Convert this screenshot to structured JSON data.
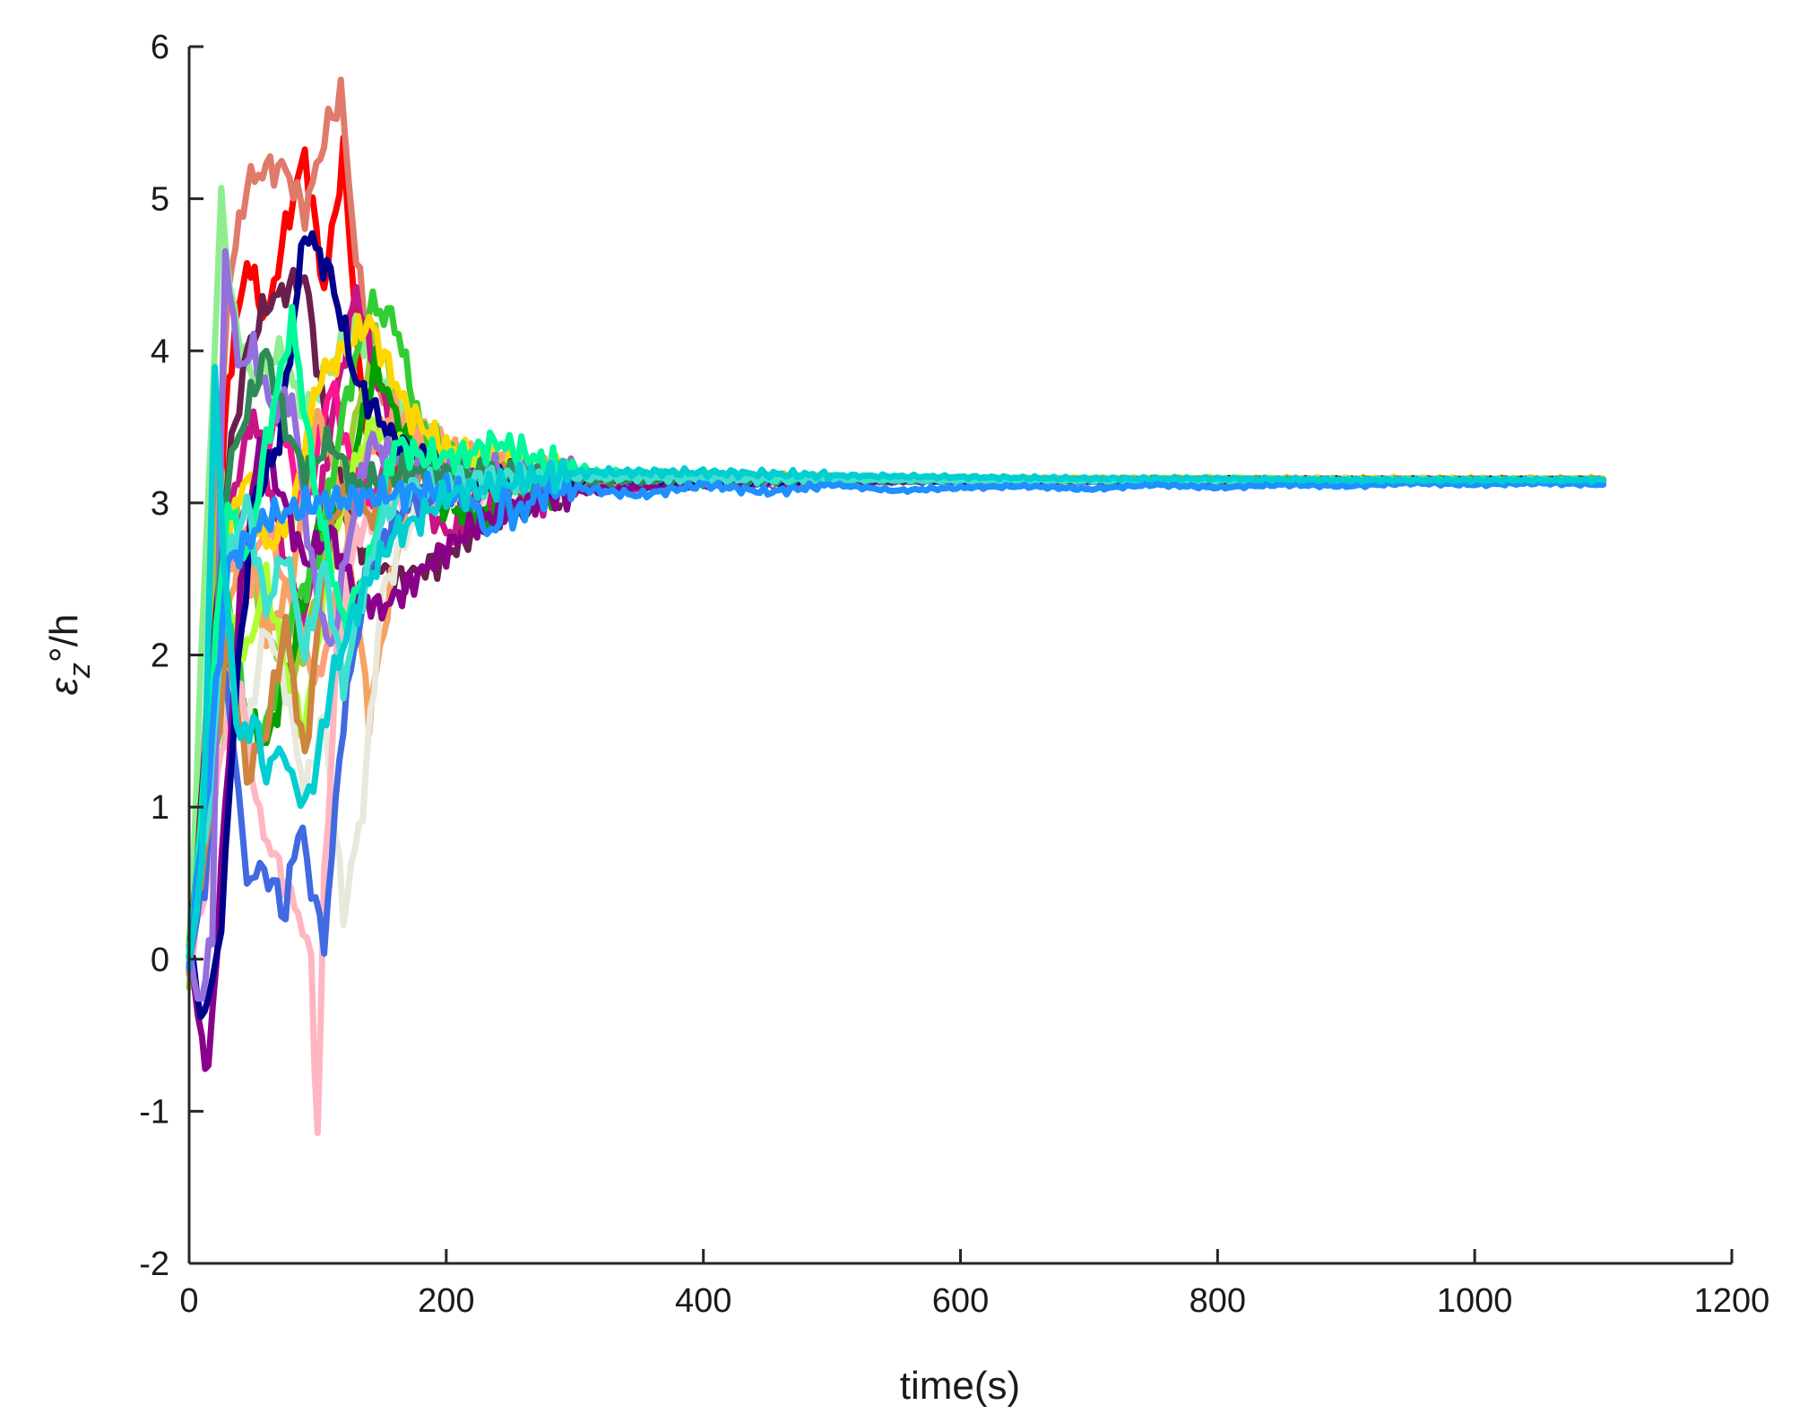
{
  "chart_data": {
    "type": "line",
    "title": "",
    "xlabel": "time(s)",
    "ylabel_parts": {
      "symbol": "ε",
      "subscript": "z",
      "unit": "°/h"
    },
    "xlim": [
      0,
      1200
    ],
    "ylim": [
      -2,
      6
    ],
    "xticks": [
      0,
      200,
      400,
      600,
      800,
      1000,
      1200
    ],
    "yticks": [
      -2,
      -1,
      0,
      1,
      2,
      3,
      4,
      5,
      6
    ],
    "xtick_labels": [
      "0",
      "200",
      "400",
      "600",
      "800",
      "1000",
      "1200"
    ],
    "ytick_labels": [
      "-2",
      "-1",
      "0",
      "1",
      "2",
      "3",
      "4",
      "5",
      "6"
    ],
    "grid": false,
    "legend": "none",
    "series": [
      {
        "color": "#ff0000",
        "x": [
          0,
          15,
          30,
          45,
          60,
          75,
          90,
          105,
          120,
          135,
          150,
          175,
          200,
          250,
          300,
          400,
          600,
          800,
          1000,
          1100
        ],
        "y": [
          0,
          1.5,
          3.8,
          4.6,
          4.2,
          4.8,
          5.3,
          4.4,
          5.3,
          3.6,
          3.3,
          3.1,
          3.05,
          3.1,
          3.12,
          3.14,
          3.15,
          3.15,
          3.15,
          3.15
        ]
      },
      {
        "color": "#e07a6b",
        "x": [
          0,
          15,
          30,
          45,
          60,
          75,
          90,
          105,
          118,
          130,
          145,
          170,
          200,
          250,
          300,
          400,
          600,
          800,
          1000,
          1100
        ],
        "y": [
          0,
          1.8,
          4.4,
          5.1,
          5.2,
          5.2,
          4.9,
          5.4,
          5.7,
          4.6,
          3.8,
          3.4,
          3.3,
          3.22,
          3.18,
          3.16,
          3.15,
          3.15,
          3.15,
          3.15
        ]
      },
      {
        "color": "#9acd32",
        "x": [
          0,
          12,
          25,
          40,
          60,
          80,
          100,
          120,
          145,
          170,
          200,
          250,
          300,
          400,
          600,
          800,
          1000,
          1100
        ],
        "y": [
          -0.2,
          1.2,
          3.2,
          2.8,
          2.2,
          1.8,
          2.4,
          3.2,
          4.1,
          3.5,
          3.3,
          3.2,
          3.18,
          3.16,
          3.15,
          3.15,
          3.15,
          3.15
        ]
      },
      {
        "color": "#90ee90",
        "x": [
          0,
          12,
          25,
          35,
          50,
          70,
          90,
          110,
          130,
          160,
          200,
          250,
          300,
          400,
          600,
          800,
          1000,
          1100
        ],
        "y": [
          0,
          2.5,
          5.0,
          4.2,
          3.8,
          4.0,
          3.6,
          3.9,
          4.2,
          3.6,
          3.3,
          3.22,
          3.18,
          3.16,
          3.15,
          3.15,
          3.15,
          3.15
        ]
      },
      {
        "color": "#6b1f4d",
        "x": [
          0,
          15,
          30,
          45,
          60,
          75,
          90,
          105,
          120,
          140,
          165,
          190,
          220,
          260,
          300,
          400,
          600,
          800,
          1000,
          1100
        ],
        "y": [
          0,
          1.6,
          3.2,
          4.0,
          4.3,
          4.4,
          4.5,
          3.6,
          3.0,
          2.6,
          2.5,
          2.6,
          2.8,
          3.0,
          3.1,
          3.14,
          3.15,
          3.15,
          3.15,
          3.15
        ]
      },
      {
        "color": "#c71585",
        "x": [
          0,
          15,
          30,
          50,
          70,
          90,
          110,
          130,
          150,
          175,
          200,
          230,
          260,
          300,
          400,
          600,
          800,
          1000,
          1100
        ],
        "y": [
          0,
          1.4,
          2.9,
          3.6,
          2.8,
          2.2,
          3.5,
          4.4,
          3.7,
          3.1,
          2.8,
          2.9,
          3.0,
          3.08,
          3.13,
          3.15,
          3.15,
          3.15,
          3.15
        ]
      },
      {
        "color": "#ff1493",
        "x": [
          0,
          15,
          30,
          50,
          70,
          90,
          110,
          125,
          140,
          160,
          190,
          230,
          300,
          400,
          600,
          800,
          1000,
          1100
        ],
        "y": [
          0,
          1.1,
          2.6,
          3.1,
          3.6,
          2.9,
          3.8,
          3.3,
          3.0,
          3.3,
          3.25,
          3.2,
          3.17,
          3.16,
          3.15,
          3.15,
          3.15,
          3.15
        ]
      },
      {
        "color": "#ffa07a",
        "x": [
          0,
          15,
          30,
          45,
          60,
          80,
          100,
          120,
          140,
          160,
          180,
          210,
          250,
          300,
          400,
          600,
          800,
          1000,
          1100
        ],
        "y": [
          0,
          1.3,
          2.7,
          2.4,
          2.9,
          2.3,
          1.8,
          2.6,
          3.4,
          3.6,
          3.5,
          3.3,
          3.2,
          3.18,
          3.16,
          3.15,
          3.15,
          3.15,
          3.15
        ]
      },
      {
        "color": "#f4a460",
        "x": [
          0,
          15,
          30,
          45,
          60,
          80,
          100,
          120,
          140,
          160,
          180,
          210,
          250,
          300,
          400,
          600,
          800,
          1000,
          1100
        ],
        "y": [
          0,
          1.0,
          2.3,
          2.9,
          2.1,
          2.5,
          3.6,
          3.0,
          1.6,
          2.6,
          3.4,
          3.3,
          3.2,
          3.17,
          3.15,
          3.15,
          3.15,
          3.15,
          3.15
        ]
      },
      {
        "color": "#00a000",
        "x": [
          0,
          15,
          30,
          45,
          60,
          80,
          100,
          120,
          145,
          170,
          195,
          230,
          270,
          300,
          400,
          600,
          800,
          1000,
          1100
        ],
        "y": [
          0,
          0.7,
          2.0,
          1.6,
          1.4,
          2.0,
          2.8,
          3.0,
          3.9,
          3.4,
          3.0,
          2.9,
          3.05,
          3.1,
          3.14,
          3.15,
          3.15,
          3.15,
          3.15
        ]
      },
      {
        "color": "#32cd32",
        "x": [
          0,
          15,
          30,
          45,
          60,
          80,
          100,
          120,
          140,
          160,
          180,
          210,
          250,
          300,
          400,
          600,
          800,
          1000,
          1100
        ],
        "y": [
          0,
          1.4,
          2.4,
          1.6,
          1.5,
          2.3,
          2.6,
          3.6,
          4.3,
          4.2,
          3.5,
          3.3,
          3.2,
          3.17,
          3.15,
          3.15,
          3.15,
          3.15,
          3.15
        ]
      },
      {
        "color": "#ffd700",
        "x": [
          0,
          15,
          30,
          45,
          60,
          80,
          100,
          120,
          140,
          170,
          200,
          250,
          300,
          400,
          600,
          800,
          1000,
          1100
        ],
        "y": [
          0,
          1.2,
          2.8,
          3.2,
          2.7,
          2.9,
          3.8,
          4.0,
          4.2,
          3.6,
          3.35,
          3.25,
          3.2,
          3.17,
          3.16,
          3.16,
          3.16,
          3.16
        ]
      },
      {
        "color": "#adff2f",
        "x": [
          0,
          15,
          30,
          45,
          60,
          75,
          90,
          105,
          120,
          140,
          170,
          200,
          250,
          300,
          400,
          600,
          800,
          1000,
          1100
        ],
        "y": [
          0,
          1.1,
          2.3,
          2.0,
          2.5,
          1.9,
          1.5,
          2.4,
          3.0,
          3.5,
          3.3,
          3.2,
          3.18,
          3.16,
          3.15,
          3.15,
          3.15,
          3.15,
          3.15
        ]
      },
      {
        "color": "#e8e8dc",
        "x": [
          0,
          15,
          30,
          45,
          60,
          75,
          90,
          105,
          120,
          135,
          150,
          180,
          220,
          300,
          400,
          600,
          800,
          1000,
          1100
        ],
        "y": [
          0,
          0.8,
          1.9,
          1.5,
          2.2,
          1.8,
          1.1,
          1.6,
          0.3,
          1.0,
          2.4,
          3.0,
          3.1,
          3.14,
          3.15,
          3.15,
          3.15,
          3.15,
          3.15
        ]
      },
      {
        "color": "#ffb6c1",
        "x": [
          0,
          12,
          25,
          40,
          55,
          70,
          85,
          95,
          100,
          105,
          115,
          130,
          160,
          200,
          250,
          300,
          400,
          600,
          800,
          1000,
          1100
        ],
        "y": [
          0,
          0.4,
          1.4,
          1.8,
          0.9,
          0.6,
          0.3,
          0.0,
          -1.2,
          0.5,
          2.0,
          2.8,
          3.0,
          3.1,
          3.13,
          3.14,
          3.15,
          3.15,
          3.15,
          3.15,
          3.15
        ]
      },
      {
        "color": "#4169e1",
        "x": [
          0,
          12,
          25,
          35,
          45,
          55,
          65,
          75,
          85,
          95,
          105,
          120,
          140,
          170,
          210,
          260,
          300,
          400,
          600,
          800,
          1000,
          1100
        ],
        "y": [
          0,
          0.5,
          2.0,
          1.4,
          0.5,
          0.6,
          0.5,
          0.3,
          0.9,
          0.5,
          0.1,
          1.6,
          2.6,
          3.0,
          3.1,
          3.12,
          3.13,
          3.14,
          3.14,
          3.14,
          3.14,
          3.14
        ]
      },
      {
        "color": "#cd853f",
        "x": [
          0,
          15,
          30,
          45,
          60,
          75,
          90,
          105,
          120,
          140,
          165,
          200,
          250,
          300,
          400,
          600,
          800,
          1000,
          1100
        ],
        "y": [
          0,
          0.9,
          2.1,
          1.2,
          1.5,
          2.2,
          1.3,
          2.6,
          3.1,
          2.9,
          3.2,
          3.17,
          3.15,
          3.15,
          3.15,
          3.15,
          3.15,
          3.15,
          3.15
        ]
      },
      {
        "color": "#8b008b",
        "x": [
          0,
          10,
          15,
          25,
          40,
          55,
          70,
          90,
          110,
          130,
          150,
          175,
          200,
          230,
          260,
          300,
          400,
          600,
          800,
          1000,
          1100
        ],
        "y": [
          0,
          -0.5,
          -0.8,
          0.6,
          2.4,
          3.4,
          3.1,
          2.6,
          2.8,
          2.4,
          2.3,
          2.5,
          2.7,
          2.9,
          3.0,
          3.08,
          3.13,
          3.15,
          3.15,
          3.15,
          3.15
        ]
      },
      {
        "color": "#00008b",
        "x": [
          0,
          12,
          25,
          35,
          50,
          70,
          90,
          110,
          130,
          160,
          200,
          250,
          300,
          400,
          600,
          800,
          1000,
          1100
        ],
        "y": [
          0,
          -0.4,
          0.2,
          1.6,
          3.0,
          3.4,
          4.8,
          4.5,
          3.8,
          3.4,
          3.2,
          3.18,
          3.16,
          3.15,
          3.15,
          3.15,
          3.15,
          3.15
        ]
      },
      {
        "color": "#9370db",
        "x": [
          0,
          10,
          18,
          28,
          38,
          50,
          65,
          80,
          95,
          110,
          125,
          140,
          160,
          185,
          210,
          250,
          300,
          400,
          600,
          800,
          1000,
          1100
        ],
        "y": [
          0,
          -0.3,
          0.2,
          4.7,
          3.9,
          4.0,
          3.6,
          3.7,
          2.6,
          2.0,
          2.8,
          3.4,
          3.3,
          3.2,
          3.22,
          3.2,
          3.18,
          3.16,
          3.15,
          3.15,
          3.15,
          3.15
        ]
      },
      {
        "color": "#2e8b57",
        "x": [
          0,
          15,
          30,
          45,
          60,
          75,
          90,
          110,
          130,
          160,
          200,
          250,
          300,
          400,
          600,
          800,
          1000,
          1100
        ],
        "y": [
          0,
          1.2,
          3.2,
          3.6,
          4.0,
          3.5,
          3.2,
          3.4,
          3.1,
          3.2,
          3.2,
          3.17,
          3.15,
          3.15,
          3.15,
          3.15,
          3.15,
          3.15
        ]
      },
      {
        "color": "#00fa9a",
        "x": [
          0,
          15,
          30,
          45,
          60,
          80,
          100,
          120,
          140,
          160,
          180,
          210,
          240,
          280,
          320,
          400,
          600,
          800,
          1000,
          1100
        ],
        "y": [
          0,
          1.5,
          3.0,
          2.6,
          3.4,
          4.2,
          3.0,
          2.2,
          2.6,
          3.4,
          3.3,
          3.3,
          3.4,
          3.25,
          3.2,
          3.17,
          3.15,
          3.15,
          3.15,
          3.15
        ]
      },
      {
        "color": "#40e0d0",
        "x": [
          0,
          15,
          30,
          45,
          60,
          75,
          90,
          105,
          120,
          135,
          150,
          170,
          190,
          220,
          260,
          300,
          400,
          600,
          800,
          1000,
          1100
        ],
        "y": [
          0,
          1.0,
          2.6,
          3.0,
          2.3,
          2.7,
          2.0,
          2.6,
          1.8,
          2.4,
          2.9,
          3.1,
          3.1,
          3.15,
          3.18,
          3.17,
          3.16,
          3.15,
          3.15,
          3.15,
          3.15
        ]
      },
      {
        "color": "#1e90ff",
        "x": [
          0,
          15,
          30,
          60,
          100,
          150,
          200,
          225,
          235,
          245,
          255,
          270,
          300,
          350,
          400,
          450,
          500,
          550,
          600,
          650,
          700,
          750,
          800,
          850,
          900,
          950,
          1000,
          1050,
          1100
        ],
        "y": [
          0,
          1.2,
          2.6,
          2.9,
          3.0,
          3.05,
          3.1,
          2.95,
          2.75,
          3.05,
          2.9,
          3.05,
          3.1,
          3.05,
          3.12,
          3.07,
          3.12,
          3.08,
          3.1,
          3.11,
          3.09,
          3.12,
          3.1,
          3.12,
          3.11,
          3.13,
          3.12,
          3.13,
          3.12
        ]
      },
      {
        "color": "#00ced1",
        "x": [
          0,
          10,
          20,
          30,
          40,
          50,
          60,
          70,
          80,
          90,
          100,
          110,
          125,
          140,
          160,
          180,
          200,
          230,
          260,
          300,
          350,
          400,
          500,
          600,
          700,
          800,
          900,
          1000,
          1100
        ],
        "y": [
          0,
          0.6,
          3.8,
          2.2,
          1.4,
          1.6,
          1.2,
          1.4,
          1.2,
          1.0,
          1.3,
          1.8,
          2.2,
          2.5,
          2.8,
          2.9,
          3.05,
          3.1,
          3.15,
          3.2,
          3.2,
          3.2,
          3.18,
          3.17,
          3.16,
          3.16,
          3.15,
          3.15,
          3.15
        ]
      }
    ]
  }
}
